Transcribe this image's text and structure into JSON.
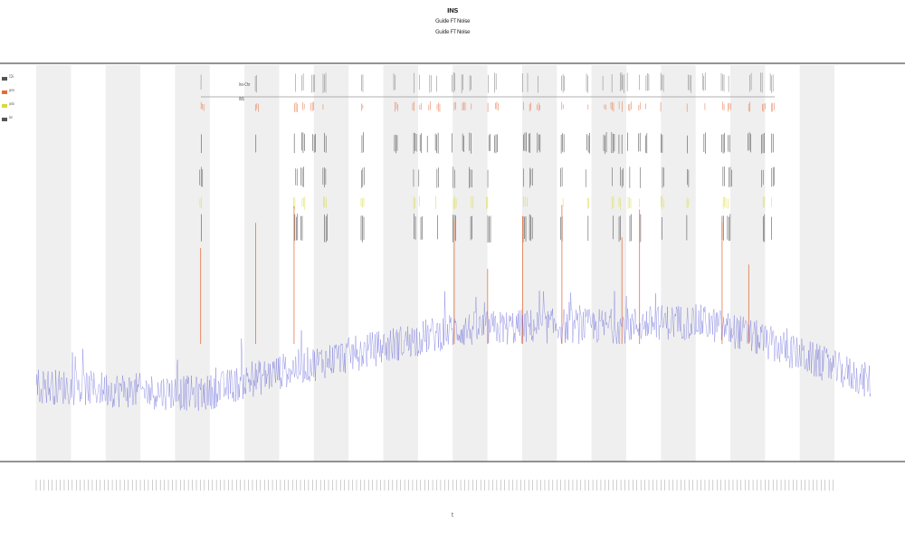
{
  "chart_title": {
    "main": "INS",
    "line2": "Guide FT Noise",
    "line3": "Guide FT Noise"
  },
  "legend": [
    {
      "label": "CDS",
      "color": "#555555"
    },
    {
      "label": "gene",
      "color": "#e66a3a"
    },
    {
      "label": "peak",
      "color": "#d8d840"
    },
    {
      "label": "bar",
      "color": "#555555"
    }
  ],
  "inline_labels": [
    "Ins-Chr",
    "INS"
  ],
  "x_axis_label": "t",
  "chart_data": {
    "type": "line",
    "title": "INS",
    "xlabel": "t",
    "ylabel": "",
    "n_points": 1200,
    "shaded_band_count": 12,
    "series": [
      {
        "color": "#4a4ad6",
        "baseline_profile": [
          [
            0.0,
            0.19
          ],
          [
            0.1,
            0.18
          ],
          [
            0.2,
            0.17
          ],
          [
            0.25,
            0.2
          ],
          [
            0.3,
            0.23
          ],
          [
            0.4,
            0.28
          ],
          [
            0.5,
            0.33
          ],
          [
            0.6,
            0.34
          ],
          [
            0.7,
            0.34
          ],
          [
            0.75,
            0.35
          ],
          [
            0.8,
            0.35
          ],
          [
            0.85,
            0.32
          ],
          [
            0.9,
            0.28
          ],
          [
            1.0,
            0.2
          ]
        ]
      },
      {
        "color": "#e66a3a",
        "spikes_at": [
          0.197,
          0.263,
          0.309,
          0.501,
          0.541,
          0.583,
          0.63,
          0.702,
          0.723,
          0.822,
          0.854
        ]
      }
    ],
    "track_rows": 5,
    "event_positions": [
      0.197,
      0.263,
      0.31,
      0.318,
      0.33,
      0.345,
      0.39,
      0.43,
      0.452,
      0.46,
      0.47,
      0.48,
      0.5,
      0.51,
      0.52,
      0.541,
      0.55,
      0.583,
      0.59,
      0.6,
      0.63,
      0.66,
      0.68,
      0.69,
      0.7,
      0.702,
      0.71,
      0.723,
      0.73,
      0.75,
      0.78,
      0.8,
      0.822,
      0.83,
      0.854,
      0.87,
      0.88
    ]
  }
}
